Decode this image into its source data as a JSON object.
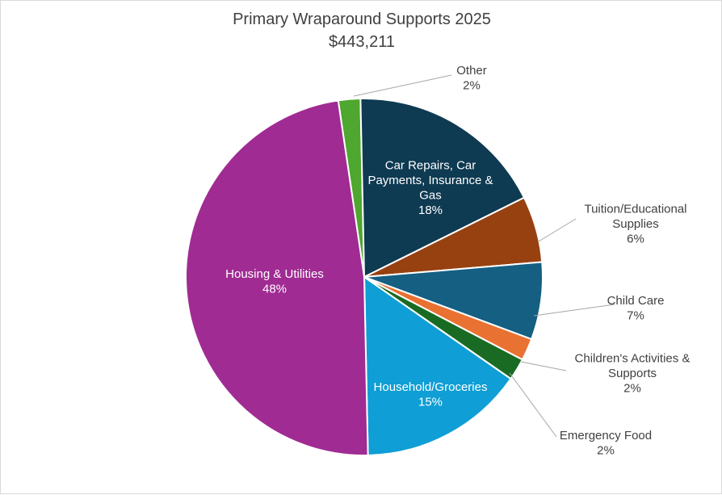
{
  "chart_data": {
    "type": "pie",
    "title": "Primary Wraparound Supports 2025",
    "subtitle": "$443,211",
    "slices": [
      {
        "label": "Other",
        "value": 2,
        "value_label": "2%",
        "color": "#4ea72e",
        "label_position": "outside",
        "label_lines": [
          "Other"
        ]
      },
      {
        "label": "Car Repairs, Car Payments, Insurance & Gas",
        "value": 18,
        "value_label": "18%",
        "color": "#0e3a52",
        "label_position": "inside",
        "label_lines": [
          "Car Repairs, Car",
          "Payments, Insurance &",
          "Gas"
        ]
      },
      {
        "label": "Tuition/Educational Supplies",
        "value": 6,
        "value_label": "6%",
        "color": "#974110",
        "label_position": "outside",
        "label_lines": [
          "Tuition/Educational",
          "Supplies"
        ]
      },
      {
        "label": "Child Care",
        "value": 7,
        "value_label": "7%",
        "color": "#145f82",
        "label_position": "outside",
        "label_lines": [
          "Child Care"
        ]
      },
      {
        "label": "Children's Activities & Supports",
        "value": 2,
        "value_label": "2%",
        "color": "#e97132",
        "label_position": "outside",
        "label_lines": [
          "Children's Activities &",
          "Supports"
        ]
      },
      {
        "label": "Emergency Food",
        "value": 2,
        "value_label": "2%",
        "color": "#196b24",
        "label_position": "outside",
        "label_lines": [
          "Emergency Food"
        ]
      },
      {
        "label": "Household/Groceries",
        "value": 15,
        "value_label": "15%",
        "color": "#0f9ed5",
        "label_position": "inside",
        "label_lines": [
          "Household/Groceries"
        ]
      },
      {
        "label": "Housing & Utilities",
        "value": 48,
        "value_label": "48%",
        "color": "#a02b93",
        "label_position": "inside",
        "label_lines": [
          "Housing & Utilities"
        ]
      }
    ],
    "legend": "none",
    "label_text_color_inside": "#ffffff",
    "label_text_color_outside": "#404040",
    "leader_line_color": "#a6a6a6"
  }
}
